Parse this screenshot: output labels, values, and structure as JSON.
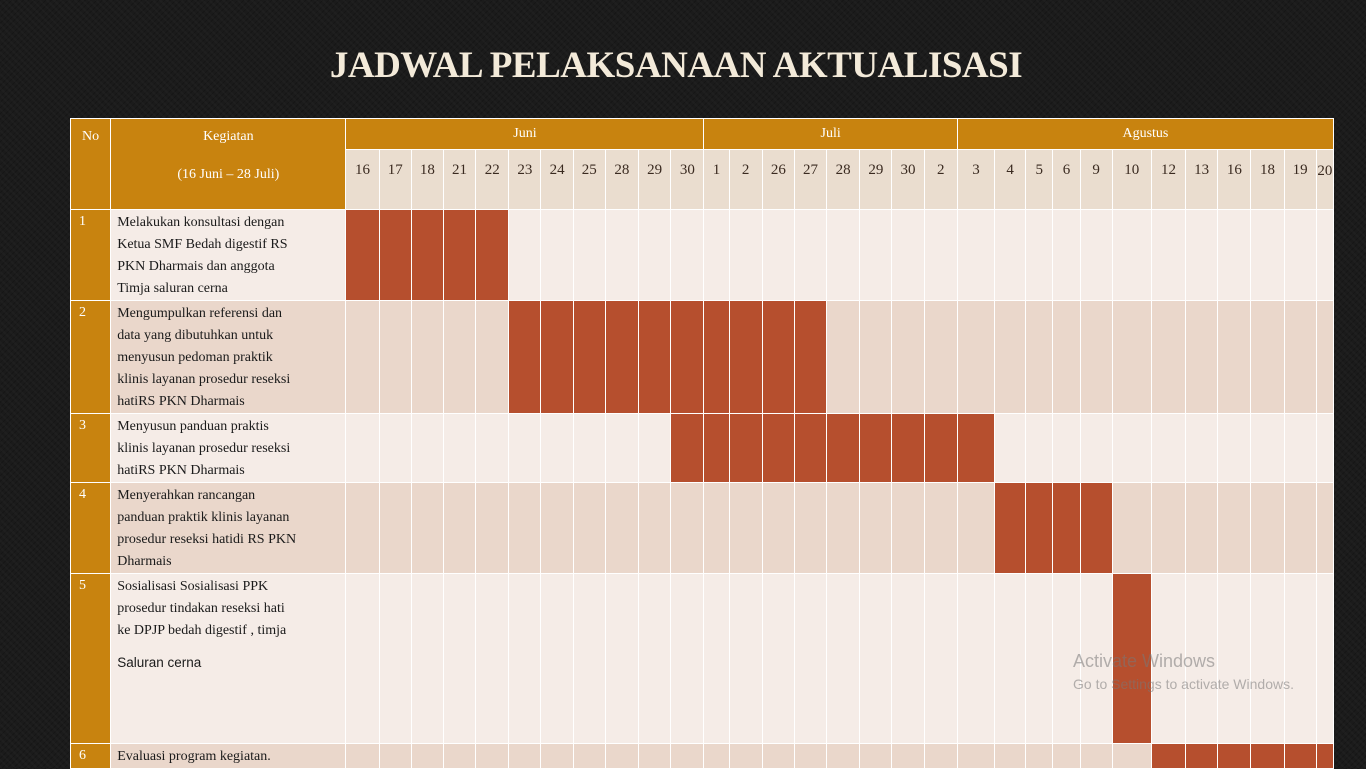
{
  "title": "JADWAL PELAKSANAAN AKTUALISASI",
  "header": {
    "no": "No",
    "kegiatan": "Kegiatan",
    "period": "(16 Juni – 28 Juli)"
  },
  "months": [
    {
      "name": "Juni",
      "span": 11
    },
    {
      "name": "Juli",
      "span": 8
    },
    {
      "name": "Agustus",
      "span": 12
    }
  ],
  "days": [
    "16",
    "17",
    "18",
    "21",
    "22",
    "23",
    "24",
    "25",
    "28",
    "29",
    "30",
    "1",
    "2",
    "26",
    "27",
    "28",
    "29",
    "30",
    "2",
    "3",
    "4",
    "5",
    "6",
    "9",
    "10",
    "12",
    "13",
    "16",
    "18",
    "19",
    "20"
  ],
  "activities": [
    {
      "no": "1",
      "lines": [
        "Melakukan konsultasi dengan",
        "Ketua SMF Bedah digestif RS",
        "PKN Dharmais dan anggota",
        "Timja saluran cerna"
      ],
      "extra": "",
      "active": [
        0,
        4
      ]
    },
    {
      "no": "2",
      "lines": [
        "Mengumpulkan referensi dan",
        "data yang dibutuhkan untuk",
        "menyusun pedoman praktik",
        "klinis layanan prosedur reseksi",
        "hatiRS PKN Dharmais"
      ],
      "extra": "",
      "active": [
        5,
        14
      ]
    },
    {
      "no": "3",
      "lines": [
        "Menyusun panduan praktis",
        "klinis layanan prosedur reseksi",
        "hatiRS PKN Dharmais"
      ],
      "extra": "",
      "active": [
        10,
        19
      ]
    },
    {
      "no": "4",
      "lines": [
        "Menyerahkan rancangan",
        "panduan praktik klinis layanan",
        "prosedur reseksi hatidi RS PKN",
        "Dharmais"
      ],
      "extra": "",
      "active": [
        20,
        23
      ]
    },
    {
      "no": "5",
      "lines": [
        "Sosialisasi  Sosialisasi PPK",
        "prosedur tindakan reseksi hati",
        "ke DPJP bedah digestif , timja"
      ],
      "extra": "Saluran cerna",
      "active": [
        24,
        24
      ]
    },
    {
      "no": "6",
      "lines": [
        "Evaluasi program kegiatan."
      ],
      "extra": "",
      "active": [
        25,
        30
      ]
    }
  ],
  "watermark": {
    "line1": "Activate Windows",
    "line2": "Go to Settings to activate Windows."
  },
  "colors": {
    "header_gold": "#c8830f",
    "active_bar": "#b64f2e",
    "row_light": "#f5ece7",
    "row_dark": "#ead7cb"
  }
}
